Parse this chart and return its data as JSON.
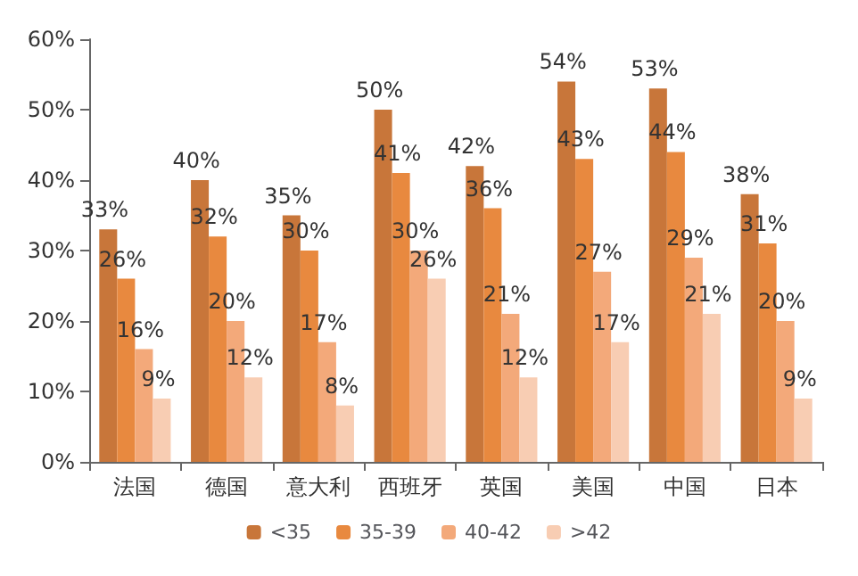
{
  "chart_data": {
    "type": "bar",
    "categories": [
      "法国",
      "德国",
      "意大利",
      "西班牙",
      "英国",
      "美国",
      "中国",
      "日本"
    ],
    "series": [
      {
        "name": "<35",
        "color": "#c8763a",
        "values": [
          33,
          40,
          35,
          50,
          42,
          54,
          53,
          38
        ],
        "value_labels": [
          "33%",
          "40%",
          "35%",
          "50%",
          "42%",
          "54%",
          "53%",
          "38%"
        ]
      },
      {
        "name": "35-39",
        "color": "#e8893f",
        "values": [
          26,
          32,
          30,
          41,
          36,
          43,
          44,
          31
        ],
        "value_labels": [
          "26%",
          "32%",
          "30%",
          "41%",
          "36%",
          "43%",
          "44%",
          "31%"
        ]
      },
      {
        "name": "40-42",
        "color": "#f3a97a",
        "values": [
          16,
          20,
          17,
          30,
          21,
          27,
          29,
          20
        ],
        "value_labels": [
          "16%",
          "20%",
          "17%",
          "30%",
          "21%",
          "27%",
          "29%",
          "20%"
        ]
      },
      {
        "name": ">42",
        "color": "#f8cdb3",
        "values": [
          9,
          12,
          8,
          26,
          12,
          17,
          21,
          9
        ],
        "value_labels": [
          "9%",
          "12%",
          "8%",
          "26%",
          "12%",
          "17%",
          "21%",
          "9%"
        ]
      }
    ],
    "ylim": [
      0,
      60
    ],
    "yticks": [
      {
        "value": 0,
        "label": "0%"
      },
      {
        "value": 10,
        "label": "10%"
      },
      {
        "value": 20,
        "label": "20%"
      },
      {
        "value": 30,
        "label": "30%"
      },
      {
        "value": 40,
        "label": "40%"
      },
      {
        "value": 50,
        "label": "50%"
      },
      {
        "value": 60,
        "label": "60%"
      }
    ],
    "grid": false,
    "legend": "bottom"
  }
}
